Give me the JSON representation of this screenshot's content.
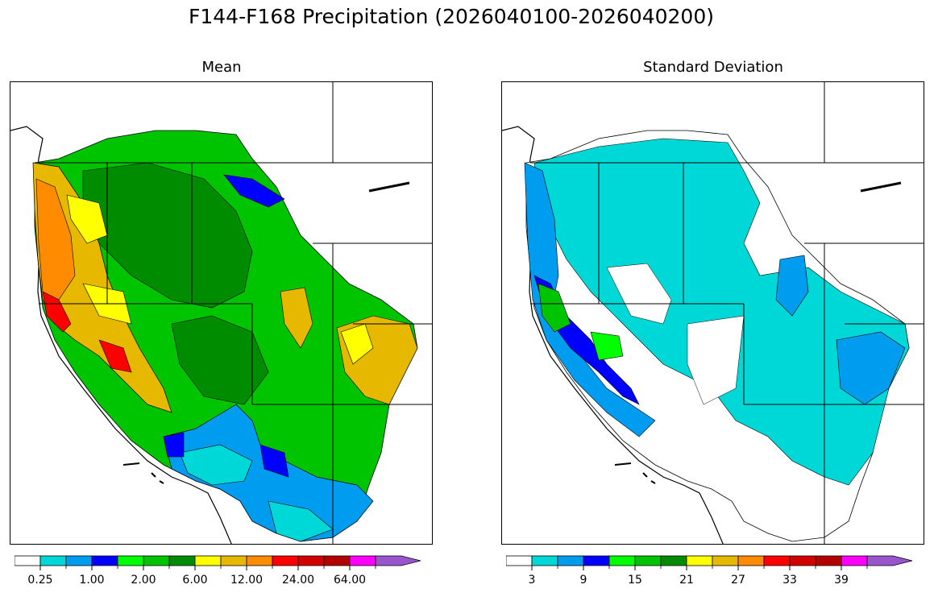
{
  "title": "F144-F168 Precipitation (2026040100-2026040200)",
  "panels": {
    "mean": {
      "title": "Mean",
      "colorbar": {
        "colors": [
          "#ffffff",
          "#00d8d8",
          "#009cf0",
          "#0000ff",
          "#00ff00",
          "#00c400",
          "#008c00",
          "#ffff00",
          "#e6b800",
          "#ff8c00",
          "#ff0000",
          "#d40000",
          "#b40000",
          "#ff00ff",
          "#9955cc"
        ],
        "tick_labels": [
          "0.25",
          "1.00",
          "2.00",
          "6.00",
          "12.00",
          "24.00",
          "64.00"
        ]
      }
    },
    "stddev": {
      "title": "Standard Deviation",
      "colorbar": {
        "colors": [
          "#ffffff",
          "#00d8d8",
          "#009cf0",
          "#0000ff",
          "#00ff00",
          "#00c400",
          "#008c00",
          "#ffff00",
          "#e6b800",
          "#ff8c00",
          "#ff0000",
          "#d40000",
          "#b40000",
          "#ff00ff",
          "#9955cc"
        ],
        "tick_labels": [
          "3",
          "9",
          "15",
          "21",
          "27",
          "33",
          "39"
        ]
      }
    }
  }
}
